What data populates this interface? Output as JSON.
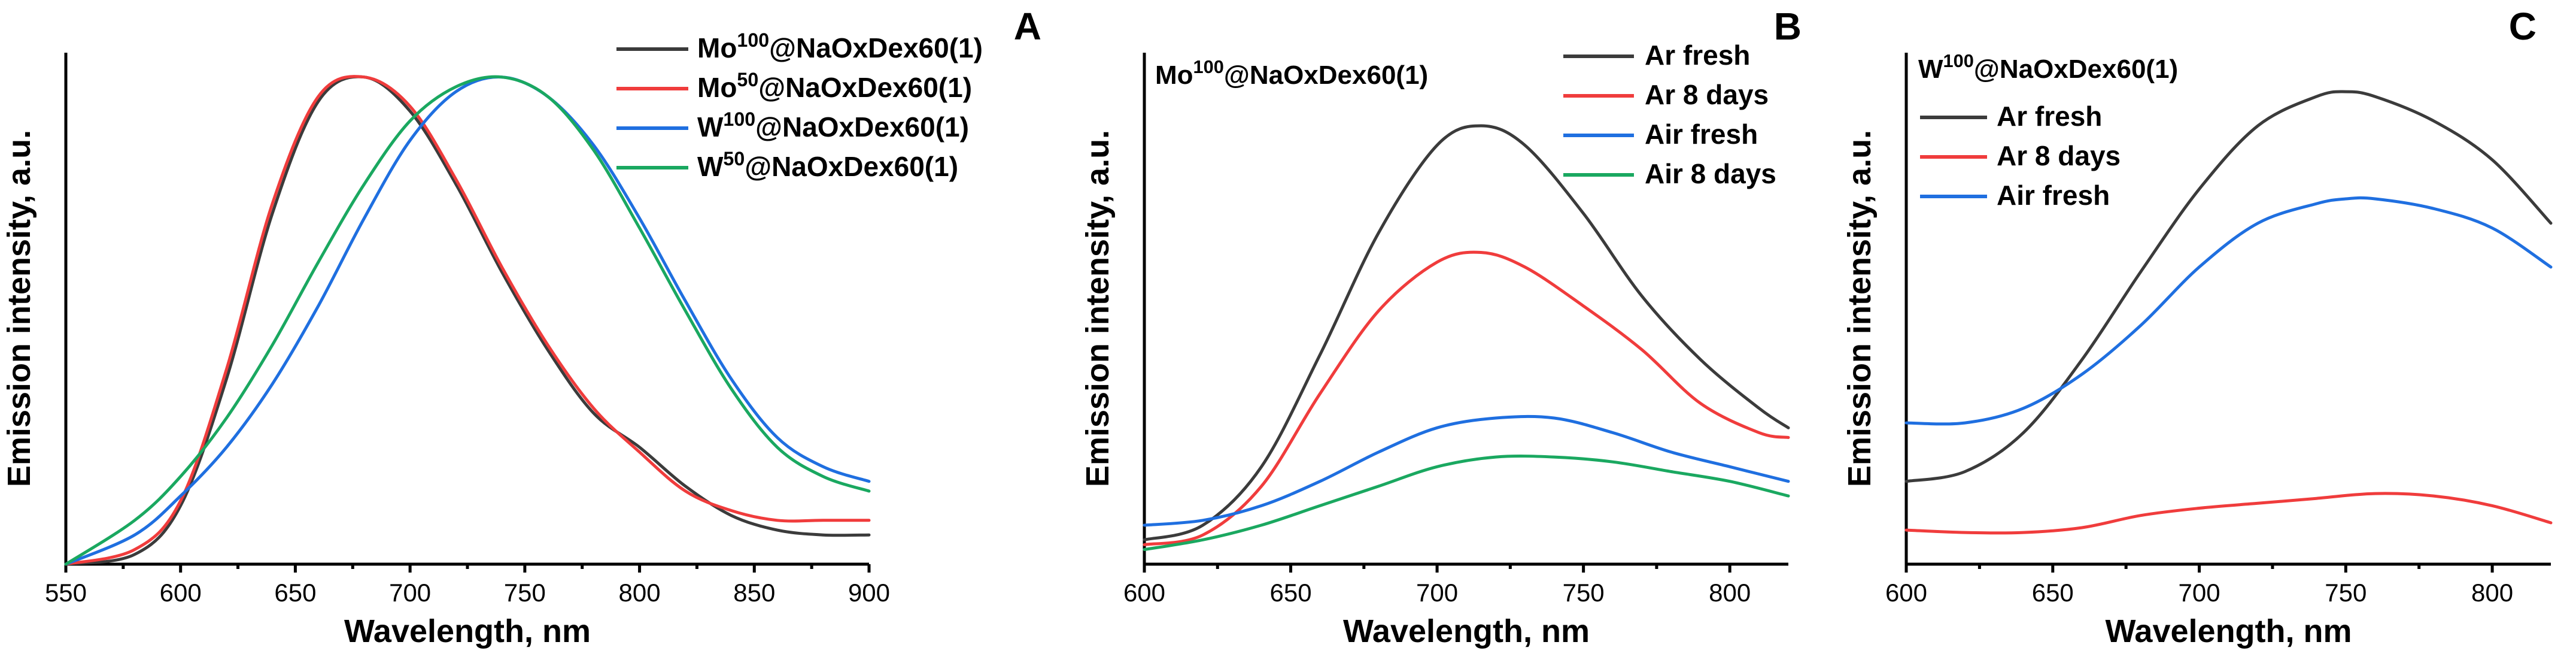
{
  "figure": {
    "colors": {
      "black": "#3b3b3b",
      "red": "#f03c3c",
      "blue": "#1f6fe0",
      "green": "#1aa860"
    }
  },
  "chart_data": [
    {
      "panel": "A",
      "type": "line",
      "title": "",
      "xlabel": "Wavelength, nm",
      "ylabel": "Emission intensity, a.u.",
      "xlim": [
        550,
        900
      ],
      "ylim": [
        0,
        1.05
      ],
      "xticks": [
        550,
        600,
        650,
        700,
        750,
        800,
        850,
        900
      ],
      "yticks_shown": false,
      "legend_position": "top-right",
      "sample_label": "",
      "series": [
        {
          "name": "Mo<sup>100</sup>@NaOxDex60(1)",
          "label_parts": [
            "Mo",
            "100",
            "@NaOxDex60(1)"
          ],
          "color": "#3b3b3b",
          "x": [
            550,
            580,
            600,
            620,
            640,
            660,
            680,
            700,
            720,
            740,
            760,
            780,
            800,
            820,
            840,
            860,
            880,
            900
          ],
          "y": [
            0.0,
            0.02,
            0.12,
            0.38,
            0.72,
            0.95,
            1.0,
            0.93,
            0.78,
            0.6,
            0.44,
            0.31,
            0.24,
            0.16,
            0.1,
            0.07,
            0.06,
            0.06
          ]
        },
        {
          "name": "Mo<sup>50</sup>@NaOxDex60(1)",
          "label_parts": [
            "Mo",
            "50",
            "@NaOxDex60(1)"
          ],
          "color": "#f03c3c",
          "x": [
            550,
            580,
            600,
            620,
            640,
            660,
            680,
            700,
            720,
            740,
            760,
            780,
            800,
            820,
            840,
            860,
            880,
            900
          ],
          "y": [
            0.0,
            0.03,
            0.13,
            0.4,
            0.74,
            0.96,
            1.0,
            0.94,
            0.79,
            0.61,
            0.45,
            0.32,
            0.23,
            0.15,
            0.11,
            0.09,
            0.09,
            0.09
          ]
        },
        {
          "name": "W<sup>100</sup>@NaOxDex60(1)",
          "label_parts": [
            "W",
            "100",
            "@NaOxDex60(1)"
          ],
          "color": "#1f6fe0",
          "x": [
            550,
            580,
            600,
            620,
            640,
            660,
            680,
            700,
            720,
            740,
            760,
            780,
            800,
            820,
            840,
            860,
            880,
            900
          ],
          "y": [
            0.0,
            0.06,
            0.14,
            0.24,
            0.37,
            0.53,
            0.71,
            0.87,
            0.97,
            1.0,
            0.96,
            0.86,
            0.71,
            0.54,
            0.38,
            0.26,
            0.2,
            0.17
          ]
        },
        {
          "name": "W<sup>50</sup>@NaOxDex60(1)",
          "label_parts": [
            "W",
            "50",
            "@NaOxDex60(1)"
          ],
          "color": "#1aa860",
          "x": [
            550,
            580,
            600,
            620,
            640,
            660,
            680,
            700,
            720,
            740,
            760,
            780,
            800,
            820,
            840,
            860,
            880,
            900
          ],
          "y": [
            0.0,
            0.09,
            0.18,
            0.3,
            0.45,
            0.62,
            0.78,
            0.91,
            0.98,
            1.0,
            0.96,
            0.85,
            0.69,
            0.52,
            0.36,
            0.24,
            0.18,
            0.15
          ]
        }
      ]
    },
    {
      "panel": "B",
      "type": "line",
      "title": "",
      "xlabel": "Wavelength, nm",
      "ylabel": "Emission intensity, a.u.",
      "xlim": [
        600,
        820
      ],
      "ylim": [
        0,
        1.05
      ],
      "xticks": [
        600,
        650,
        700,
        750,
        800
      ],
      "yticks_shown": false,
      "legend_position": "top-right",
      "sample_label_parts": [
        "Mo",
        "100",
        "@NaOxDex60(1)"
      ],
      "series": [
        {
          "name": "Ar fresh",
          "color": "#3b3b3b",
          "x": [
            600,
            620,
            640,
            660,
            680,
            700,
            715,
            730,
            750,
            770,
            790,
            810,
            820
          ],
          "y": [
            0.05,
            0.08,
            0.2,
            0.43,
            0.68,
            0.86,
            0.9,
            0.86,
            0.72,
            0.55,
            0.42,
            0.32,
            0.28
          ]
        },
        {
          "name": "Ar 8 days",
          "color": "#f03c3c",
          "x": [
            600,
            620,
            640,
            660,
            680,
            700,
            715,
            730,
            750,
            770,
            790,
            810,
            820
          ],
          "y": [
            0.04,
            0.06,
            0.16,
            0.35,
            0.52,
            0.62,
            0.64,
            0.61,
            0.53,
            0.44,
            0.33,
            0.27,
            0.26
          ]
        },
        {
          "name": "Air fresh",
          "color": "#1f6fe0",
          "x": [
            600,
            620,
            640,
            660,
            680,
            700,
            720,
            740,
            760,
            780,
            800,
            820
          ],
          "y": [
            0.08,
            0.09,
            0.12,
            0.17,
            0.23,
            0.28,
            0.3,
            0.3,
            0.27,
            0.23,
            0.2,
            0.17
          ]
        },
        {
          "name": "Air 8 days",
          "color": "#1aa860",
          "x": [
            600,
            620,
            640,
            660,
            680,
            700,
            720,
            740,
            760,
            780,
            800,
            820
          ],
          "y": [
            0.03,
            0.05,
            0.08,
            0.12,
            0.16,
            0.2,
            0.22,
            0.22,
            0.21,
            0.19,
            0.17,
            0.14
          ]
        }
      ]
    },
    {
      "panel": "C",
      "type": "line",
      "title": "",
      "xlabel": "Wavelength, nm",
      "ylabel": "Emission intensity, a.u.",
      "xlim": [
        600,
        820
      ],
      "ylim": [
        0,
        1.05
      ],
      "xticks": [
        600,
        650,
        700,
        750,
        800
      ],
      "yticks_shown": false,
      "legend_position": "top-left",
      "sample_label_parts": [
        "W",
        "100",
        "@NaOxDex60(1)"
      ],
      "series": [
        {
          "name": "Ar fresh",
          "color": "#3b3b3b",
          "x": [
            600,
            620,
            640,
            660,
            680,
            700,
            720,
            740,
            750,
            760,
            780,
            800,
            820
          ],
          "y": [
            0.17,
            0.19,
            0.27,
            0.42,
            0.6,
            0.77,
            0.9,
            0.96,
            0.97,
            0.96,
            0.91,
            0.83,
            0.7
          ]
        },
        {
          "name": "Ar 8 days",
          "color": "#f03c3c",
          "x": [
            600,
            620,
            640,
            660,
            680,
            700,
            720,
            740,
            760,
            780,
            800,
            820
          ],
          "y": [
            0.07,
            0.065,
            0.065,
            0.075,
            0.1,
            0.115,
            0.125,
            0.135,
            0.145,
            0.14,
            0.12,
            0.085
          ]
        },
        {
          "name": "Air fresh",
          "color": "#1f6fe0",
          "x": [
            600,
            620,
            640,
            660,
            680,
            700,
            720,
            740,
            750,
            760,
            780,
            800,
            820
          ],
          "y": [
            0.29,
            0.29,
            0.32,
            0.39,
            0.49,
            0.61,
            0.7,
            0.74,
            0.75,
            0.75,
            0.73,
            0.69,
            0.61
          ]
        }
      ]
    }
  ]
}
